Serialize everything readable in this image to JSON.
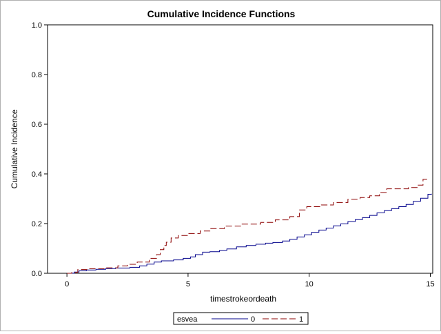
{
  "chart_data": {
    "type": "line",
    "step": true,
    "title": "Cumulative Incidence Functions",
    "xlabel": "timestrokeordeath",
    "ylabel": "Cumulative Incidence",
    "xlim": [
      -0.8,
      15.1
    ],
    "ylim": [
      0,
      1.0
    ],
    "xticks": [
      "0",
      "5",
      "10",
      "15"
    ],
    "yticks": [
      "0.0",
      "0.2",
      "0.4",
      "0.6",
      "0.8",
      "1.0"
    ],
    "grid": false,
    "legend": {
      "title": "esvea",
      "position": "bottom-center"
    },
    "series": [
      {
        "name": "0",
        "color": "#00008b",
        "dash": "solid",
        "points": [
          [
            0,
            0.0
          ],
          [
            0.3,
            0.005
          ],
          [
            0.5,
            0.01
          ],
          [
            0.8,
            0.013
          ],
          [
            1.2,
            0.016
          ],
          [
            1.6,
            0.019
          ],
          [
            2.0,
            0.021
          ],
          [
            2.6,
            0.024
          ],
          [
            3.0,
            0.03
          ],
          [
            3.3,
            0.037
          ],
          [
            3.6,
            0.045
          ],
          [
            3.9,
            0.05
          ],
          [
            4.4,
            0.054
          ],
          [
            4.8,
            0.06
          ],
          [
            5.1,
            0.066
          ],
          [
            5.3,
            0.075
          ],
          [
            5.6,
            0.085
          ],
          [
            5.9,
            0.087
          ],
          [
            6.3,
            0.092
          ],
          [
            6.6,
            0.098
          ],
          [
            7.0,
            0.106
          ],
          [
            7.4,
            0.112
          ],
          [
            7.8,
            0.117
          ],
          [
            8.2,
            0.121
          ],
          [
            8.5,
            0.124
          ],
          [
            8.9,
            0.13
          ],
          [
            9.2,
            0.137
          ],
          [
            9.5,
            0.146
          ],
          [
            9.8,
            0.155
          ],
          [
            10.1,
            0.165
          ],
          [
            10.4,
            0.174
          ],
          [
            10.7,
            0.182
          ],
          [
            11.0,
            0.191
          ],
          [
            11.3,
            0.199
          ],
          [
            11.6,
            0.208
          ],
          [
            11.9,
            0.216
          ],
          [
            12.2,
            0.224
          ],
          [
            12.5,
            0.233
          ],
          [
            12.8,
            0.243
          ],
          [
            13.1,
            0.252
          ],
          [
            13.4,
            0.26
          ],
          [
            13.7,
            0.268
          ],
          [
            14.0,
            0.277
          ],
          [
            14.3,
            0.29
          ],
          [
            14.6,
            0.302
          ],
          [
            14.9,
            0.318
          ],
          [
            15.05,
            0.32
          ]
        ]
      },
      {
        "name": "1",
        "color": "#8b0000",
        "dash": "dashed",
        "points": [
          [
            0,
            0.0
          ],
          [
            0.2,
            0.004
          ],
          [
            0.45,
            0.015
          ],
          [
            0.9,
            0.018
          ],
          [
            1.6,
            0.022
          ],
          [
            2.1,
            0.03
          ],
          [
            2.5,
            0.036
          ],
          [
            2.9,
            0.045
          ],
          [
            3.4,
            0.06
          ],
          [
            3.7,
            0.075
          ],
          [
            3.85,
            0.095
          ],
          [
            4.0,
            0.112
          ],
          [
            4.1,
            0.125
          ],
          [
            4.3,
            0.142
          ],
          [
            4.6,
            0.152
          ],
          [
            5.0,
            0.16
          ],
          [
            5.5,
            0.17
          ],
          [
            5.9,
            0.18
          ],
          [
            6.5,
            0.19
          ],
          [
            7.2,
            0.198
          ],
          [
            8.0,
            0.205
          ],
          [
            8.6,
            0.215
          ],
          [
            9.2,
            0.228
          ],
          [
            9.6,
            0.255
          ],
          [
            9.9,
            0.268
          ],
          [
            10.5,
            0.275
          ],
          [
            11.0,
            0.285
          ],
          [
            11.6,
            0.298
          ],
          [
            12.1,
            0.305
          ],
          [
            12.5,
            0.312
          ],
          [
            12.9,
            0.325
          ],
          [
            13.2,
            0.34
          ],
          [
            14.1,
            0.345
          ],
          [
            14.5,
            0.355
          ],
          [
            14.7,
            0.378
          ],
          [
            14.85,
            0.38
          ]
        ]
      }
    ]
  }
}
